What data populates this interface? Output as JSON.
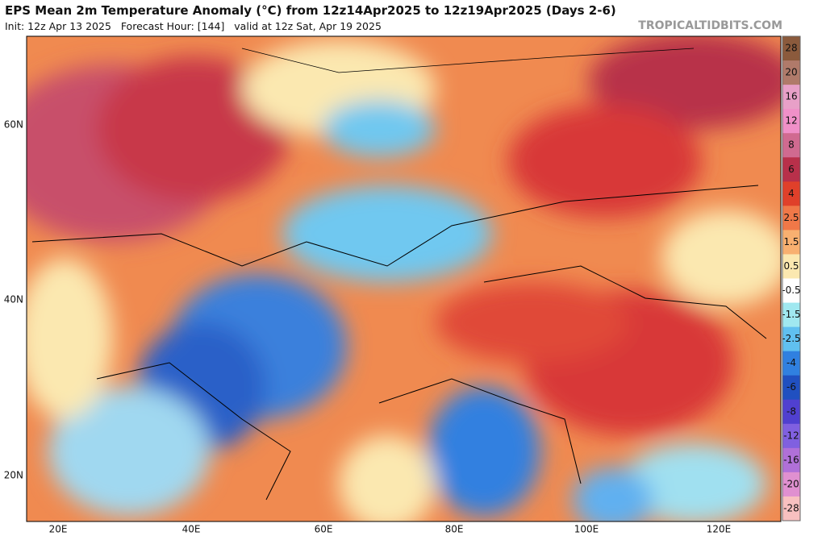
{
  "header": {
    "title": "EPS Mean 2m Temperature Anomaly (°C) from 12z14Apr2025 to 12z19Apr2025 (Days 2-6)",
    "subtitle": "Init: 12z Apr 13 2025   Forecast Hour: [144]   valid at 12z Sat, Apr 19 2025",
    "watermark": "TROPICALTIDBITS.COM"
  },
  "map": {
    "lat_labels": [
      "60N",
      "40N",
      "20N"
    ],
    "lon_labels": [
      "20E",
      "40E",
      "60E",
      "80E",
      "100E",
      "120E"
    ]
  },
  "colorbar": {
    "levels": [
      28,
      20,
      16,
      12,
      8,
      6,
      4,
      2.5,
      1.5,
      0.5,
      -0.5,
      -1.5,
      -2.5,
      -4,
      -6,
      -8,
      -12,
      -16,
      -20,
      -28
    ],
    "colors": [
      "#8b5a3c",
      "#b07a6a",
      "#e8a0c8",
      "#f090c8",
      "#d06a90",
      "#b8304a",
      "#e0402a",
      "#f07848",
      "#f8b070",
      "#fbe8b0",
      "#ffffff",
      "#a0e8f0",
      "#60c0f0",
      "#3080e0",
      "#2050c0",
      "#5040d0",
      "#8060e0",
      "#b070d8",
      "#e090d0",
      "#f8c0c0"
    ]
  }
}
